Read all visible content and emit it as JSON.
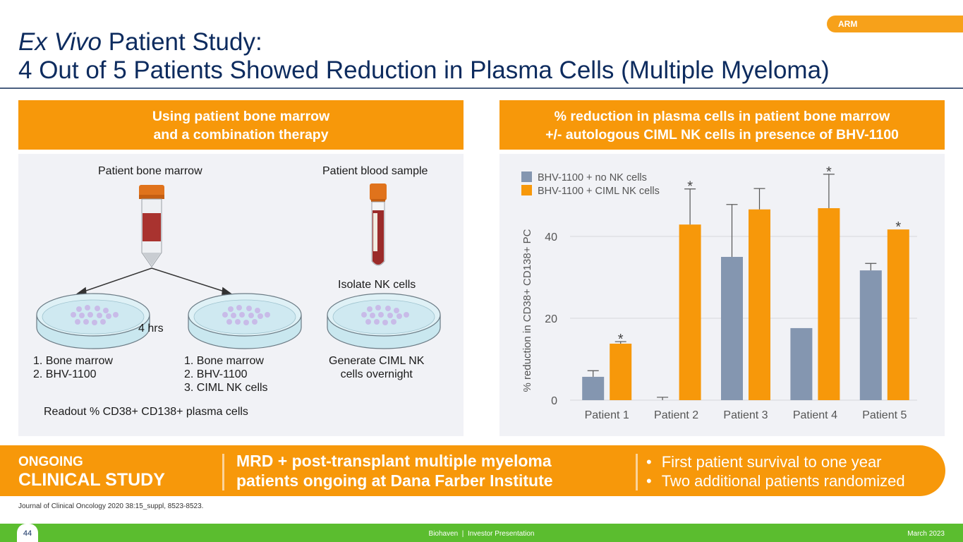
{
  "tag": "ARM",
  "title": {
    "line1_italic": "Ex Vivo",
    "line1_rest": " Patient Study:",
    "line2": "4 Out of 5 Patients Showed Reduction in Plasma Cells (Multiple Myeloma)"
  },
  "left_panel": {
    "header_line1": "Using patient bone marrow",
    "header_line2": "and a combination therapy",
    "bone_marrow_label": "Patient bone marrow",
    "blood_sample_label": "Patient blood sample",
    "isolate_label": "Isolate NK cells",
    "duration_label": "4 hrs",
    "dish1_label": "1. Bone marrow\n2. BHV-1100",
    "dish2_label": "1. Bone marrow\n2. BHV-1100\n3. CIML NK cells",
    "dish3_label": "Generate CIML NK\ncells overnight",
    "readout_label": "Readout % CD38+ CD138+ plasma cells"
  },
  "right_panel": {
    "header_line1": "% reduction in plasma cells in patient bone marrow",
    "header_line2": "+/- autologous CIML NK cells in presence of BHV-1100"
  },
  "chart_data": {
    "type": "bar",
    "title": "",
    "xlabel": "",
    "ylabel": "% reduction in CD38+ CD138+ PC",
    "ylim": [
      0,
      58
    ],
    "yticks": [
      0,
      20,
      40
    ],
    "grid": true,
    "legend_position": "top-left",
    "categories": [
      "Patient 1",
      "Patient 2",
      "Patient 3",
      "Patient 4",
      "Patient 5"
    ],
    "series": [
      {
        "name": "BHV-1100 + no NK cells",
        "color": "#8496b0",
        "values": [
          5.7,
          0,
          35.0,
          17.6,
          31.7
        ],
        "error_upper": [
          7.2,
          0.7,
          47.8,
          null,
          33.4
        ],
        "significant": [
          false,
          false,
          false,
          false,
          false
        ]
      },
      {
        "name": "BHV-1100 + CIML NK cells",
        "color": "#f7980a",
        "values": [
          13.8,
          42.9,
          46.6,
          46.9,
          41.7
        ],
        "error_upper": [
          14.3,
          51.6,
          51.7,
          55.2,
          null
        ],
        "significant": [
          true,
          true,
          false,
          true,
          true
        ]
      }
    ],
    "significance_marker": "*"
  },
  "bottom_band": {
    "ongoing": "ONGOING",
    "clinical_study": "CLINICAL STUDY",
    "mid_line1": "MRD + post-transplant multiple myeloma",
    "mid_line2": "patients ongoing at Dana Farber Institute",
    "bullets": [
      "First patient survival to one year",
      "Two additional patients randomized"
    ]
  },
  "citation": "Journal of Clinical Oncology 2020 38:15_suppl, 8523-8523.",
  "footer": {
    "page_number": "44",
    "center": "Biohaven  |  Investor Presentation",
    "date": "March 2023"
  }
}
